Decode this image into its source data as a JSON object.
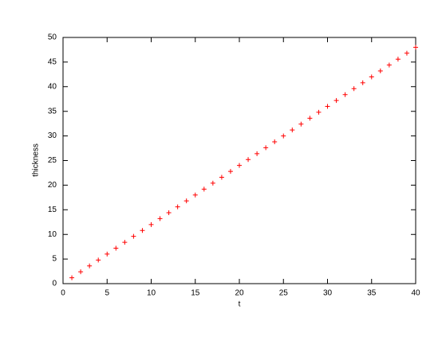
{
  "chart_data": {
    "type": "scatter",
    "xlabel": "t",
    "ylabel": "thickness",
    "x": [
      1,
      2,
      3,
      4,
      5,
      6,
      7,
      8,
      9,
      10,
      11,
      12,
      13,
      14,
      15,
      16,
      17,
      18,
      19,
      20,
      21,
      22,
      23,
      24,
      25,
      26,
      27,
      28,
      29,
      30,
      31,
      32,
      33,
      34,
      35,
      36,
      37,
      38,
      39,
      40
    ],
    "series": [
      {
        "color": "#ff0000",
        "values": [
          1.2,
          2.4,
          3.6,
          4.8,
          6,
          7.2,
          8.4,
          9.6,
          10.8,
          12,
          13.2,
          14.4,
          15.6,
          16.8,
          18,
          19.2,
          20.4,
          21.6,
          22.8,
          24,
          25.2,
          26.4,
          27.6,
          28.8,
          30,
          31.2,
          32.4,
          33.6,
          34.8,
          36,
          37.2,
          38.4,
          39.6,
          40.8,
          42,
          43.2,
          44.4,
          45.6,
          46.8,
          48
        ]
      }
    ],
    "xlim": [
      0,
      40
    ],
    "ylim": [
      0,
      50
    ],
    "xticks": [
      0,
      5,
      10,
      15,
      20,
      25,
      30,
      35,
      40
    ],
    "yticks": [
      0,
      5,
      10,
      15,
      20,
      25,
      30,
      35,
      40,
      45,
      50
    ]
  }
}
